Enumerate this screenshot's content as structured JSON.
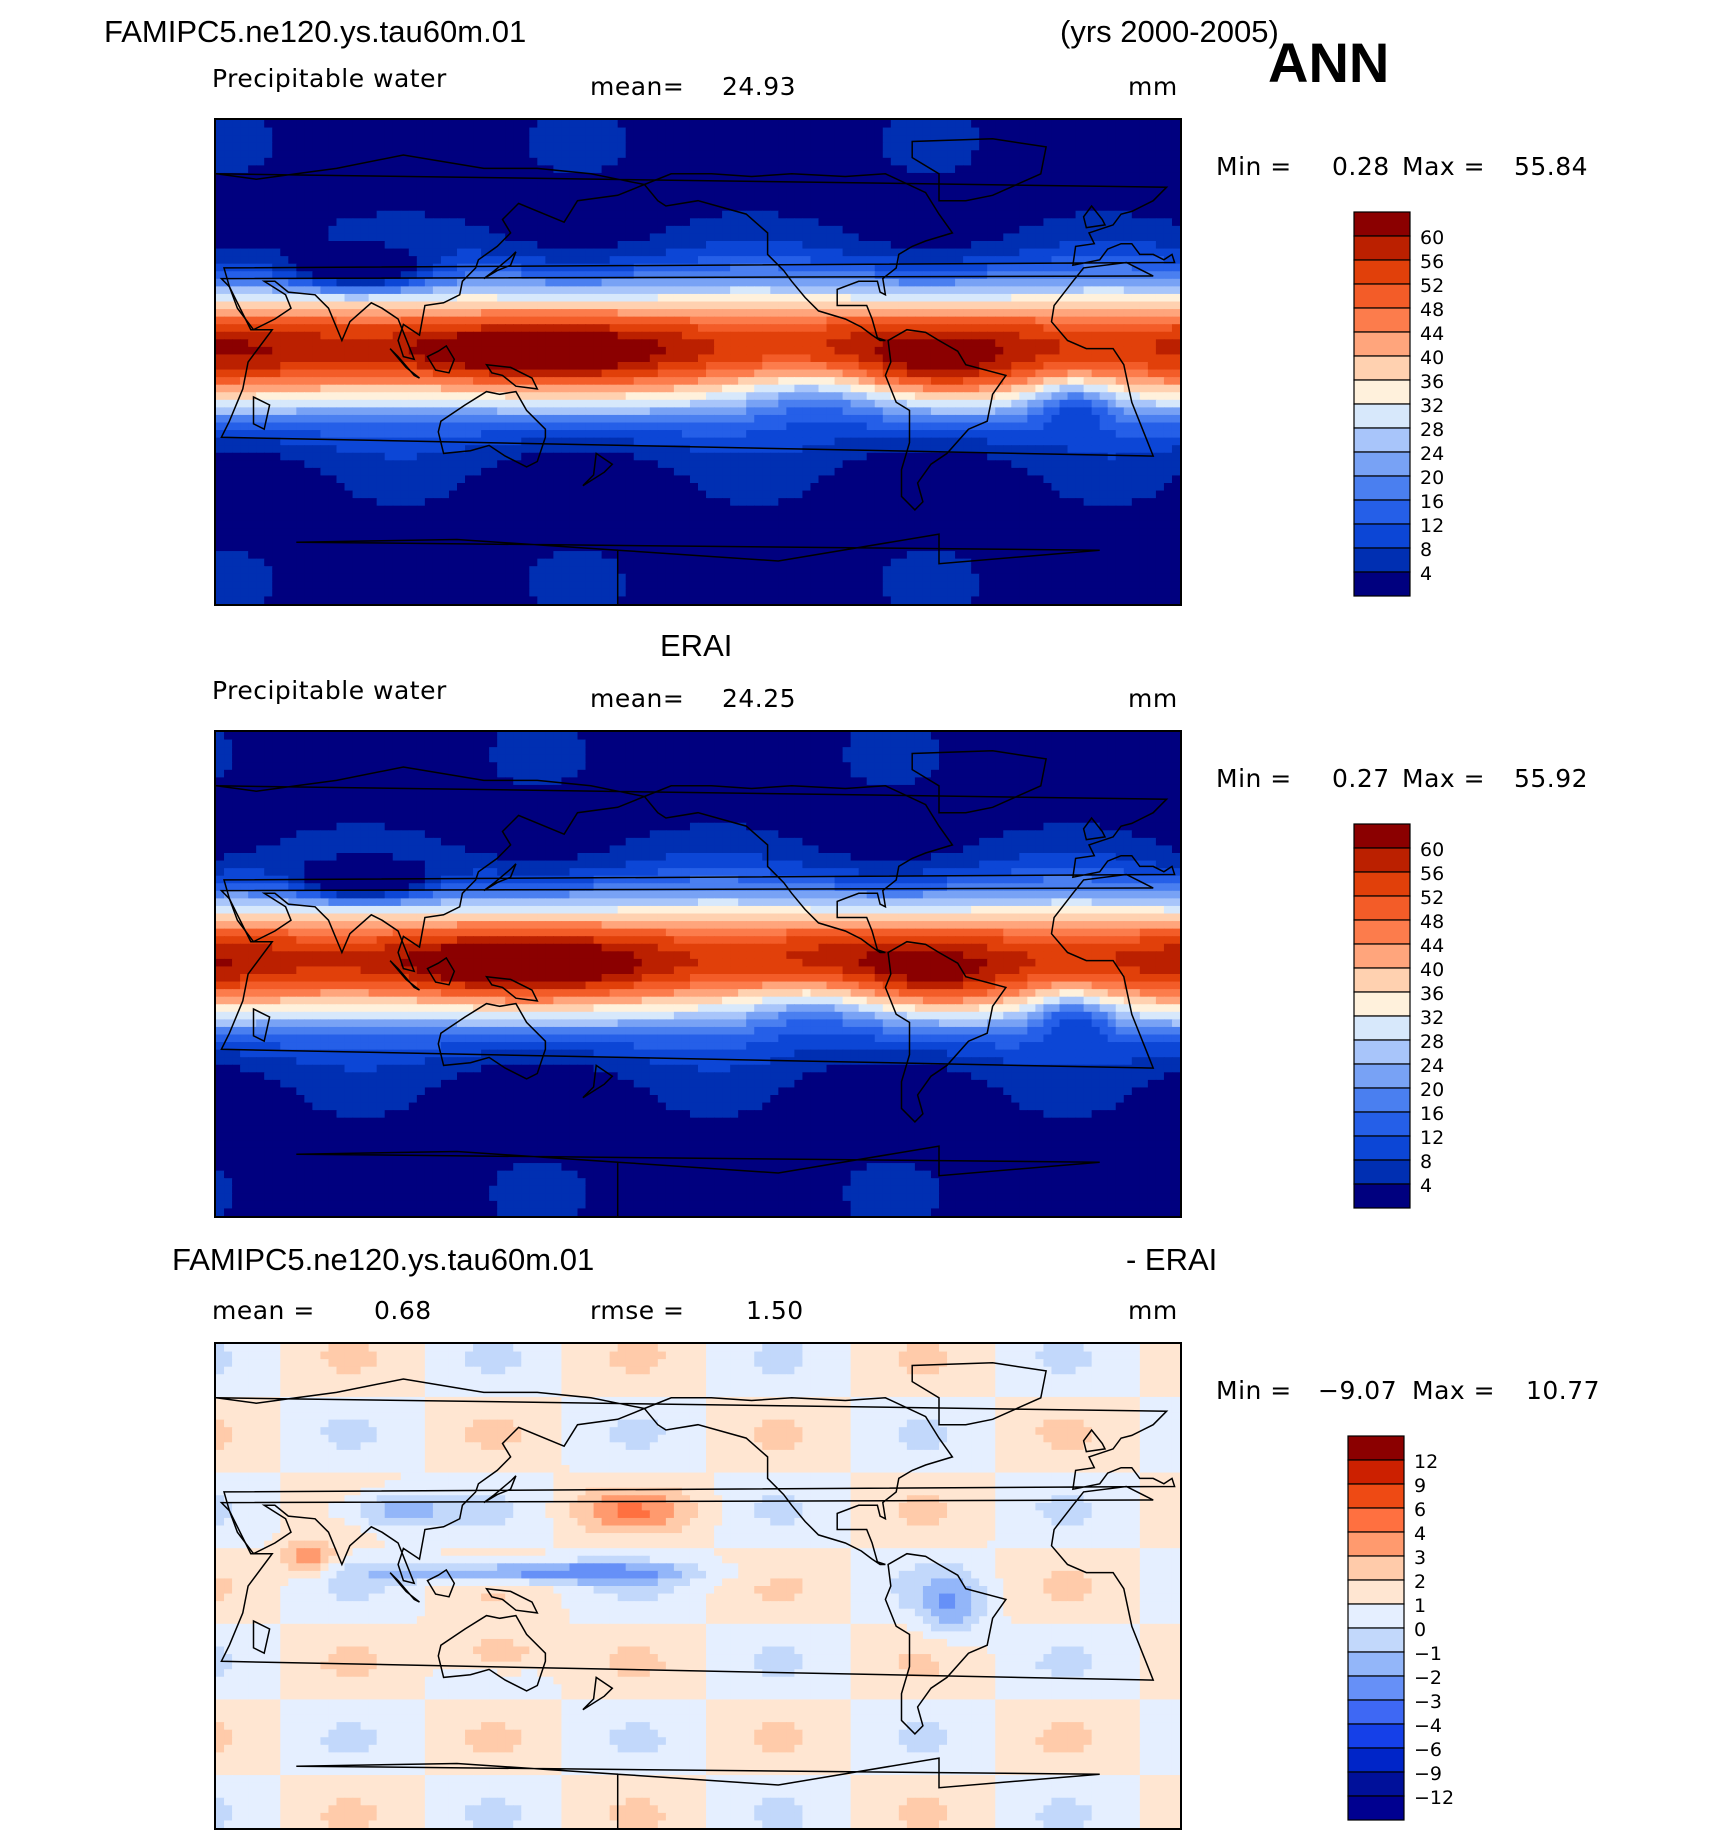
{
  "header": {
    "case_name": "FAMIPC5.ne120.ys.tau60m.01",
    "years": "(yrs 2000-2005)",
    "season": "ANN"
  },
  "colors": {
    "abs_scale": [
      "#00007f",
      "#002fb2",
      "#0c46d6",
      "#255fe8",
      "#4a7ff0",
      "#78a2f5",
      "#a8c5fa",
      "#d7e8fb",
      "#fff1dc",
      "#ffd1b0",
      "#ffa57c",
      "#fc7c4c",
      "#f35c28",
      "#e1400a",
      "#bb2000",
      "#8b0000"
    ],
    "diff_scale": [
      "#000090",
      "#00109a",
      "#0025c8",
      "#1540e8",
      "#3e68f4",
      "#6690f7",
      "#93b6f9",
      "#c2d8fb",
      "#e5efff",
      "#ffe6d2",
      "#ffcbaa",
      "#ff9a6e",
      "#ff7040",
      "#ee4a14",
      "#cc2000",
      "#8b0000"
    ]
  },
  "chart_data": [
    {
      "type": "heatmap",
      "dataset": "FAMIPC5.ne120.ys.tau60m.01",
      "title": "",
      "variable": "Precipitable water",
      "mean_label": "mean=",
      "mean": "24.93",
      "units": "mm",
      "min_label": "Min =",
      "min": "0.28",
      "max_label": "Max =",
      "max": "55.84",
      "levels": [
        60,
        56,
        52,
        48,
        44,
        40,
        36,
        32,
        28,
        24,
        20,
        16,
        12,
        8,
        4
      ],
      "level_labels": [
        "60",
        "56",
        "52",
        "48",
        "44",
        "40",
        "36",
        "32",
        "28",
        "24",
        "20",
        "16",
        "12",
        "8",
        "4"
      ]
    },
    {
      "type": "heatmap",
      "dataset": "ERAI",
      "title": "ERAI",
      "variable": "Precipitable water",
      "mean_label": "mean=",
      "mean": "24.25",
      "units": "mm",
      "min_label": "Min =",
      "min": "0.27",
      "max_label": "Max =",
      "max": "55.92",
      "levels": [
        60,
        56,
        52,
        48,
        44,
        40,
        36,
        32,
        28,
        24,
        20,
        16,
        12,
        8,
        4
      ],
      "level_labels": [
        "60",
        "56",
        "52",
        "48",
        "44",
        "40",
        "36",
        "32",
        "28",
        "24",
        "20",
        "16",
        "12",
        "8",
        "4"
      ]
    },
    {
      "type": "heatmap",
      "dataset": "FAMIPC5.ne120.ys.tau60m.01 - ERAI",
      "title_left": "FAMIPC5.ne120.ys.tau60m.01",
      "title_right": "- ERAI",
      "mean_label": "mean =",
      "mean": "0.68",
      "rmse_label": "rmse =",
      "rmse": "1.50",
      "units": "mm",
      "min_label": "Min =",
      "min": "−9.07",
      "max_label": "Max =",
      "max": "10.77",
      "levels": [
        12,
        9,
        6,
        4,
        3,
        2,
        1,
        0,
        -1,
        -2,
        -3,
        -4,
        -6,
        -9,
        -12
      ],
      "level_labels": [
        "12",
        "9",
        "6",
        "4",
        "3",
        "2",
        "1",
        "0",
        "−1",
        "−2",
        "−3",
        "−4",
        "−6",
        "−9",
        "−12"
      ]
    }
  ]
}
